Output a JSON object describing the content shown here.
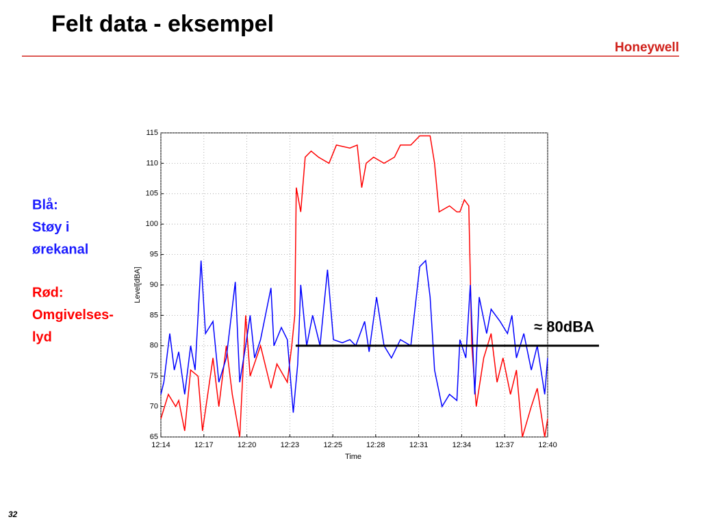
{
  "title": "Felt data - eksempel",
  "logo": "Honeywell",
  "notes": [
    {
      "lines": [
        "Blå:",
        "Støy i",
        "ørekanal"
      ],
      "color": "#1a1aff"
    },
    {
      "lines": [
        "Rød:",
        "Omgivelses-",
        "lyd"
      ],
      "color": "#ff0000"
    }
  ],
  "page_number": "32",
  "chart_data": {
    "type": "line",
    "xlabel": "Time",
    "ylabel": "Level[dBA]",
    "xlim": [
      734,
      760
    ],
    "xticks": [
      {
        "value": 734,
        "label": "12:14"
      },
      {
        "value": 736.89,
        "label": "12:17"
      },
      {
        "value": 739.78,
        "label": "12:20"
      },
      {
        "value": 742.67,
        "label": "12:23"
      },
      {
        "value": 745.56,
        "label": "12:25"
      },
      {
        "value": 748.44,
        "label": "12:28"
      },
      {
        "value": 751.33,
        "label": "12:31"
      },
      {
        "value": 754.22,
        "label": "12:34"
      },
      {
        "value": 757.11,
        "label": "12:37"
      },
      {
        "value": 760,
        "label": "12:40"
      }
    ],
    "ylim": [
      65,
      115
    ],
    "yticks": [
      65,
      70,
      75,
      80,
      85,
      90,
      95,
      100,
      105,
      110,
      115
    ],
    "grid": true,
    "series": [
      {
        "color": "#ff0000",
        "x": [
          734,
          734.5,
          735,
          735.2,
          735.6,
          736,
          736.5,
          736.8,
          737.5,
          737.9,
          738.4,
          738.8,
          739.3,
          739.7,
          740,
          740.7,
          741.4,
          741.8,
          742.5,
          742.8,
          743,
          743.1,
          743.4,
          743.7,
          744.1,
          744.6,
          745.3,
          745.8,
          746.7,
          747.2,
          747.5,
          747.8,
          748.3,
          749,
          749.7,
          750.1,
          750.8,
          751.4,
          752.1,
          752.4,
          752.7,
          753.4,
          753.9,
          754.1,
          754.4,
          754.7,
          754.9,
          755.2,
          755.7,
          756.2,
          756.6,
          757,
          757.5,
          757.9,
          758.3,
          758.9,
          759.3,
          759.8,
          760
        ],
        "values": [
          68,
          72,
          70,
          71,
          66,
          76,
          75,
          66,
          78,
          70,
          80,
          72,
          65,
          85,
          75,
          80,
          73,
          77,
          74,
          80,
          85,
          106,
          102,
          111,
          112,
          111,
          110,
          113,
          112.5,
          113,
          106,
          110,
          111,
          110,
          111,
          113,
          113,
          114.5,
          114.5,
          110,
          102,
          103,
          102,
          102,
          104,
          103,
          80,
          70,
          78,
          82,
          74,
          78,
          72,
          76,
          65,
          70,
          73,
          65,
          68
        ]
      },
      {
        "color": "#0000ff",
        "x": [
          734,
          734.2,
          734.6,
          734.9,
          735.2,
          735.6,
          736,
          736.3,
          736.7,
          737,
          737.5,
          737.9,
          738.4,
          739,
          739.3,
          739.7,
          740,
          740.3,
          740.7,
          741.4,
          741.6,
          742.1,
          742.5,
          742.9,
          743.2,
          743.4,
          743.8,
          744.2,
          744.7,
          745.2,
          745.6,
          746.2,
          746.7,
          747.1,
          747.7,
          748,
          748.5,
          749,
          749.5,
          750.1,
          750.8,
          751.4,
          751.8,
          752.1,
          752.4,
          752.9,
          753.4,
          753.9,
          754.1,
          754.5,
          754.8,
          755.1,
          755.4,
          755.9,
          756.2,
          756.8,
          757.3,
          757.6,
          757.9,
          758.4,
          758.9,
          759.3,
          759.8,
          760
        ],
        "values": [
          72,
          74,
          82,
          76,
          79,
          72,
          80,
          76,
          94,
          82,
          84,
          74,
          78,
          90.5,
          74,
          80,
          85,
          78,
          81,
          89.5,
          80,
          83,
          81,
          69,
          77,
          90,
          80,
          85,
          80,
          92.5,
          81,
          80.5,
          81,
          80,
          84,
          79,
          88,
          80,
          78,
          81,
          80,
          93,
          94,
          88,
          76,
          70,
          72,
          71,
          81,
          78,
          90,
          72,
          88,
          82,
          86,
          84,
          82,
          85,
          78,
          82,
          76,
          80,
          72,
          78
        ]
      }
    ],
    "reference_line": {
      "value": 80,
      "label": "≈ 80dBA",
      "color": "#000000"
    }
  }
}
